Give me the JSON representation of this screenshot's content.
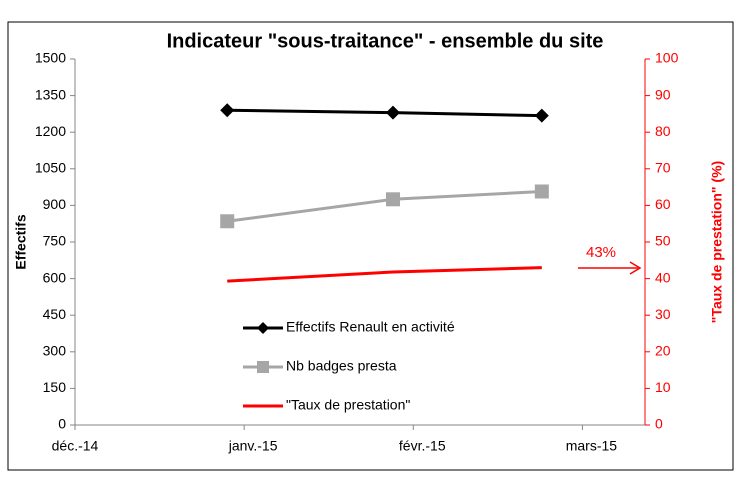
{
  "chart_data": {
    "type": "line",
    "title": "Indicateur \"sous-traitance\" - ensemble du site",
    "y_label": "Effectifs",
    "y2_label": "\"Taux de prestation\" (%)",
    "x": [
      0.9,
      1.88,
      2.76
    ],
    "xlim": [
      0,
      3.37
    ],
    "xticks": [
      {
        "value": 0,
        "label": "déc.-14"
      },
      {
        "value": 1,
        "label": "janv.-15"
      },
      {
        "value": 2,
        "label": "févr.-15"
      },
      {
        "value": 3,
        "label": "mars-15"
      }
    ],
    "ylim": [
      0,
      1500
    ],
    "yticks": [
      0,
      150,
      300,
      450,
      600,
      750,
      900,
      1050,
      1200,
      1350,
      1500
    ],
    "y2lim": [
      0,
      100
    ],
    "y2ticks": [
      0,
      10,
      20,
      30,
      40,
      50,
      60,
      70,
      80,
      90,
      100
    ],
    "grid": false,
    "series": [
      {
        "name": "Effectifs Renault en activité",
        "color": "#000000",
        "marker": "diamond",
        "values": [
          1290,
          1280,
          1268
        ]
      },
      {
        "name": "Nb badges presta",
        "color": "#a6a6a6",
        "marker": "square",
        "values": [
          835,
          925,
          957
        ]
      },
      {
        "name": "\"Taux de prestation\"",
        "color": "#ff0000",
        "marker": "none",
        "axis": "y2",
        "values": [
          39.3,
          41.8,
          43
        ]
      }
    ],
    "annotation": "43%"
  }
}
